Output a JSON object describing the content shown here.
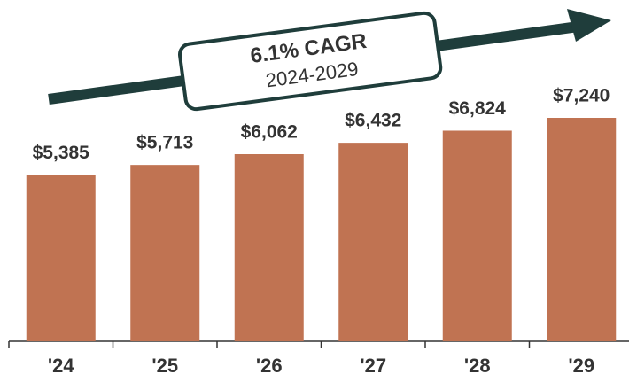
{
  "chart_data": {
    "type": "bar",
    "categories": [
      "'24",
      "'25",
      "'26",
      "'27",
      "'28",
      "'29"
    ],
    "values": [
      5385,
      5713,
      6062,
      6432,
      6824,
      7240
    ],
    "value_labels": [
      "$5,385",
      "$5,713",
      "$6,062",
      "$6,432",
      "$6,824",
      "$7,240"
    ],
    "color": "#c07352",
    "annotation": {
      "title": "6.1% CAGR",
      "subtitle": "2024-2029"
    }
  }
}
